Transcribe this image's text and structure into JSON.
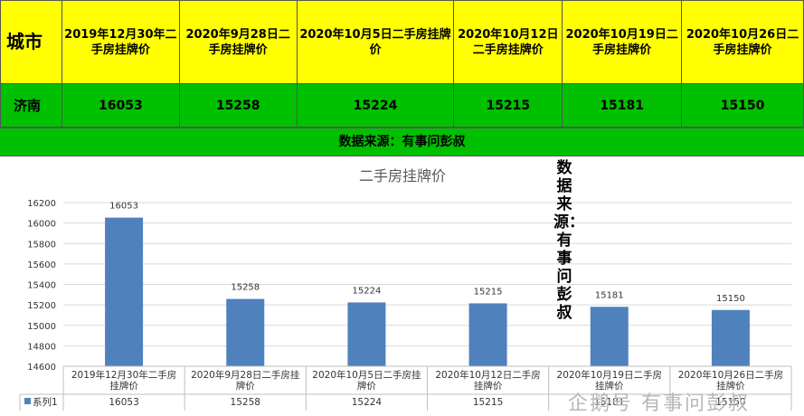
{
  "table": {
    "city_header": "城市",
    "columns": [
      "2019年12月30年二手房挂牌价",
      "2020年9月28日二手房挂牌价",
      "2020年10月5日二手房挂牌价",
      "2020年10月12日二手房挂牌价",
      "2020年10月19日二手房挂牌价",
      "2020年10月26日二手房挂牌价"
    ],
    "row_city": "济南",
    "values": [
      "16053",
      "15258",
      "15224",
      "15215",
      "15181",
      "15150"
    ]
  },
  "source_bar": "数据来源：有事问彭叔",
  "vertical_note": "数据来源：有事问彭叔",
  "watermark": "企鹅号 有事问彭叔",
  "colors": {
    "header": "#ffff00",
    "row": "#00c000",
    "bar": "#4f81bd"
  },
  "chart_data": {
    "type": "bar",
    "title": "二手房挂牌价",
    "categories": [
      "2019年12月30年二手房挂牌价",
      "2020年9月28日二手房挂牌价",
      "2020年10月5日二手房挂牌价",
      "2020年10月12日二手房挂牌价",
      "2020年10月19日二手房挂牌价",
      "2020年10月26日二手房挂牌价"
    ],
    "category_labels": [
      [
        "2019年12月30年二手房",
        "挂牌价"
      ],
      [
        "2020年9月28日二手房挂",
        "牌价"
      ],
      [
        "2020年10月5日二手房挂",
        "牌价"
      ],
      [
        "2020年10月12日二手房",
        "挂牌价"
      ],
      [
        "2020年10月19日二手房",
        "挂牌价"
      ],
      [
        "2020年10月26日二手房",
        "挂牌价"
      ]
    ],
    "series": [
      {
        "name": "系列1",
        "values": [
          16053,
          15258,
          15224,
          15215,
          15181,
          15150
        ]
      }
    ],
    "ylim": [
      14600,
      16200
    ],
    "yticks": [
      14600,
      14800,
      15000,
      15200,
      15400,
      15600,
      15800,
      16000,
      16200
    ],
    "grid": true,
    "data_table": true
  }
}
